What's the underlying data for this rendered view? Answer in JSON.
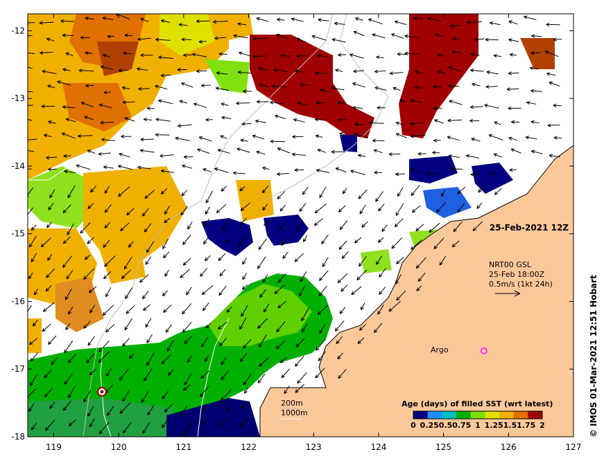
{
  "map": {
    "date_label": "25-Feb-2021 12Z",
    "lon_range": [
      118.6,
      127
    ],
    "lat_range": [
      -18,
      -11.75
    ],
    "lon_ticks": [
      "119",
      "120",
      "121",
      "122",
      "123",
      "124",
      "125",
      "126",
      "127"
    ],
    "lat_ticks": [
      "-12",
      "-13",
      "-14",
      "-15",
      "-16",
      "-17",
      "-18"
    ],
    "current_info": {
      "line1": "NRT00 GSL",
      "line2": "25-Feb 18:00Z",
      "line3": "0.5m/s (1kt 24h)"
    },
    "argo": {
      "label": "Argo",
      "lon": 125.62,
      "lat": -16.73,
      "color": "#ff33ff"
    },
    "isobaths": {
      "label_200": "200m",
      "label_1000": "1000m"
    },
    "land_color": "#fbc89a",
    "legend": {
      "title": "Age (days) of filled SST (wrt latest)",
      "tick_labels": [
        "0",
        "0.25",
        "0.5",
        "0.75",
        "1",
        "1.25",
        "1.5",
        "1.75",
        "2"
      ],
      "colors": [
        "#000080",
        "#1e90ff",
        "#00c0c0",
        "#00b000",
        "#7fe000",
        "#e0e000",
        "#f0b000",
        "#e07000",
        "#a00000"
      ]
    },
    "credit": "© IMOS 01-Mar-2021 12:51 Hobart"
  }
}
